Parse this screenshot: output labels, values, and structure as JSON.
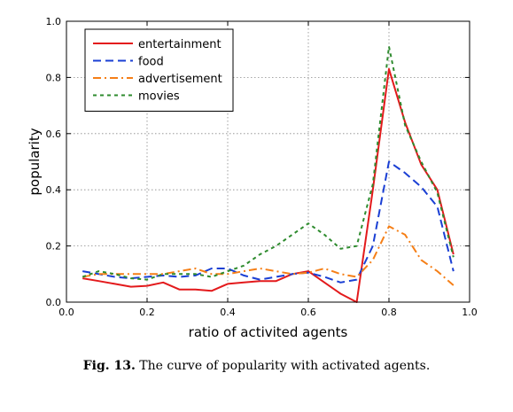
{
  "caption": {
    "label": "Fig. 13.",
    "text": "The curve of popularity with activated agents."
  },
  "chart_data": {
    "type": "line",
    "title": "",
    "xlabel": "ratio of activited agents",
    "ylabel": "popularity",
    "xlim": [
      0,
      1
    ],
    "ylim": [
      0,
      1
    ],
    "xticks": [
      0.0,
      0.2,
      0.4,
      0.6,
      0.8,
      1.0
    ],
    "yticks": [
      0.0,
      0.2,
      0.4,
      0.6,
      0.8,
      1.0
    ],
    "xtick_labels": [
      "0.0",
      "0.2",
      "0.4",
      "0.6",
      "0.8",
      "1.0"
    ],
    "ytick_labels": [
      "0.0",
      "0.2",
      "0.4",
      "0.6",
      "0.8",
      "1.0"
    ],
    "grid": true,
    "legend_position": "top-left",
    "x": [
      0.04,
      0.08,
      0.12,
      0.16,
      0.2,
      0.24,
      0.28,
      0.32,
      0.36,
      0.4,
      0.44,
      0.48,
      0.52,
      0.56,
      0.6,
      0.64,
      0.68,
      0.72,
      0.76,
      0.8,
      0.84,
      0.88,
      0.92,
      0.96
    ],
    "series": [
      {
        "name": "entertainment",
        "color": "#e31a1c",
        "dash": "solid",
        "values": [
          0.085,
          0.075,
          0.065,
          0.055,
          0.058,
          0.07,
          0.045,
          0.045,
          0.04,
          0.065,
          0.07,
          0.075,
          0.075,
          0.1,
          0.11,
          0.07,
          0.03,
          0.0,
          0.4,
          0.83,
          0.64,
          0.49,
          0.4,
          0.17
        ]
      },
      {
        "name": "food",
        "color": "#1a3fd4",
        "dash": "dashed",
        "values": [
          0.11,
          0.1,
          0.09,
          0.085,
          0.09,
          0.095,
          0.09,
          0.095,
          0.12,
          0.12,
          0.095,
          0.08,
          0.09,
          0.1,
          0.105,
          0.09,
          0.07,
          0.08,
          0.2,
          0.5,
          0.46,
          0.41,
          0.34,
          0.11
        ]
      },
      {
        "name": "advertisement",
        "color": "#f57f17",
        "dash": "dashdot",
        "values": [
          0.09,
          0.1,
          0.1,
          0.1,
          0.1,
          0.1,
          0.11,
          0.12,
          0.1,
          0.1,
          0.11,
          0.12,
          0.11,
          0.1,
          0.105,
          0.12,
          0.1,
          0.09,
          0.15,
          0.27,
          0.24,
          0.15,
          0.11,
          0.06
        ]
      },
      {
        "name": "movies",
        "color": "#2e8b2e",
        "dash": "dotted",
        "values": [
          0.09,
          0.11,
          0.1,
          0.085,
          0.08,
          0.1,
          0.1,
          0.1,
          0.09,
          0.11,
          0.13,
          0.17,
          0.2,
          0.24,
          0.28,
          0.24,
          0.19,
          0.2,
          0.42,
          0.91,
          0.63,
          0.5,
          0.39,
          0.16
        ]
      }
    ]
  }
}
